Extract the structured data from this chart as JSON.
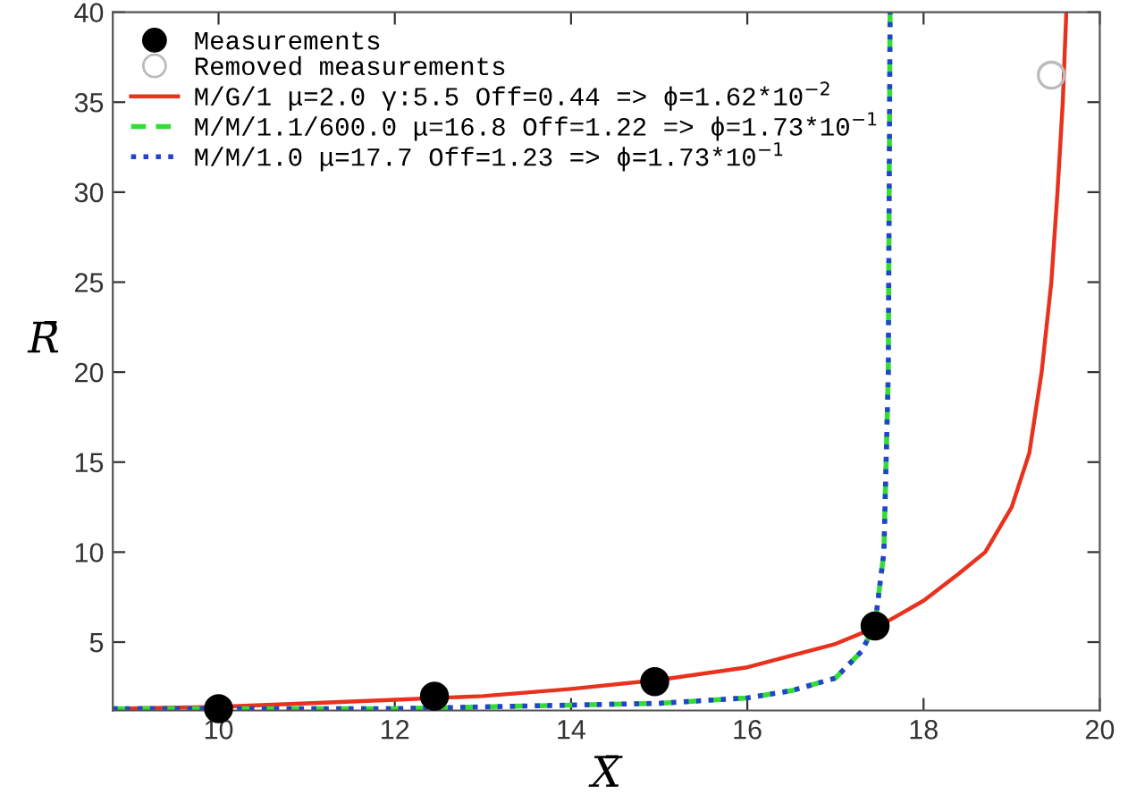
{
  "chart_data": {
    "type": "line",
    "xlabel": "X̄",
    "ylabel": "R̄",
    "xlim": [
      8.8,
      20
    ],
    "ylim": [
      1.2,
      40
    ],
    "xticks": [
      10,
      12,
      14,
      16,
      18,
      20
    ],
    "yticks": [
      5,
      10,
      15,
      20,
      25,
      30,
      35,
      40
    ],
    "grid": false,
    "legend": "top left",
    "series": [
      {
        "name": "Measurements",
        "type": "scatter",
        "marker": "circle",
        "color": "#000000",
        "x": [
          10.0,
          12.45,
          14.95,
          17.45
        ],
        "values": [
          1.3,
          2.0,
          2.8,
          5.9
        ]
      },
      {
        "name": "Removed measurements",
        "type": "scatter",
        "marker": "circle",
        "color": "#bbbbbb",
        "x": [
          19.45
        ],
        "values": [
          36.5
        ]
      },
      {
        "name": "M/G/1 μ=2.0 γ:5.5 Off=0.44 => ϕ=1.62*10$^{−2}$",
        "line_style": "solid",
        "color": "#e8321e",
        "x": [
          8.8,
          10,
          11,
          12,
          13,
          14,
          15,
          16,
          17,
          17.5,
          18,
          18.4,
          18.7,
          19.0,
          19.2,
          19.34,
          19.45,
          19.52,
          19.58,
          19.62
        ],
        "values": [
          1.3,
          1.4,
          1.6,
          1.8,
          2.0,
          2.4,
          2.9,
          3.6,
          4.9,
          5.9,
          7.3,
          8.8,
          10,
          12.5,
          15.5,
          20,
          25,
          30,
          35,
          40
        ]
      },
      {
        "name": "M/M/1.1/600.0 μ=16.8 Off=1.22 => ϕ=1.73*10$^{−1}$",
        "line_style": "dashed",
        "color": "#33dd33",
        "x": [
          8.8,
          12,
          14,
          15,
          16,
          16.5,
          17,
          17.3,
          17.45,
          17.55,
          17.6,
          17.62
        ],
        "values": [
          1.3,
          1.3,
          1.5,
          1.6,
          1.9,
          2.3,
          3.0,
          4.5,
          6,
          10,
          20,
          40
        ]
      },
      {
        "name": "M/M/1.0 μ=17.7 Off=1.23 => ϕ=1.73*10$^{−1}$",
        "line_style": "dotted",
        "color": "#2244cc",
        "x": [
          8.8,
          12,
          14,
          15,
          16,
          16.5,
          17,
          17.3,
          17.45,
          17.55,
          17.6,
          17.62
        ],
        "values": [
          1.3,
          1.3,
          1.5,
          1.6,
          1.9,
          2.3,
          3.0,
          4.5,
          6,
          10,
          20,
          40
        ]
      }
    ]
  }
}
